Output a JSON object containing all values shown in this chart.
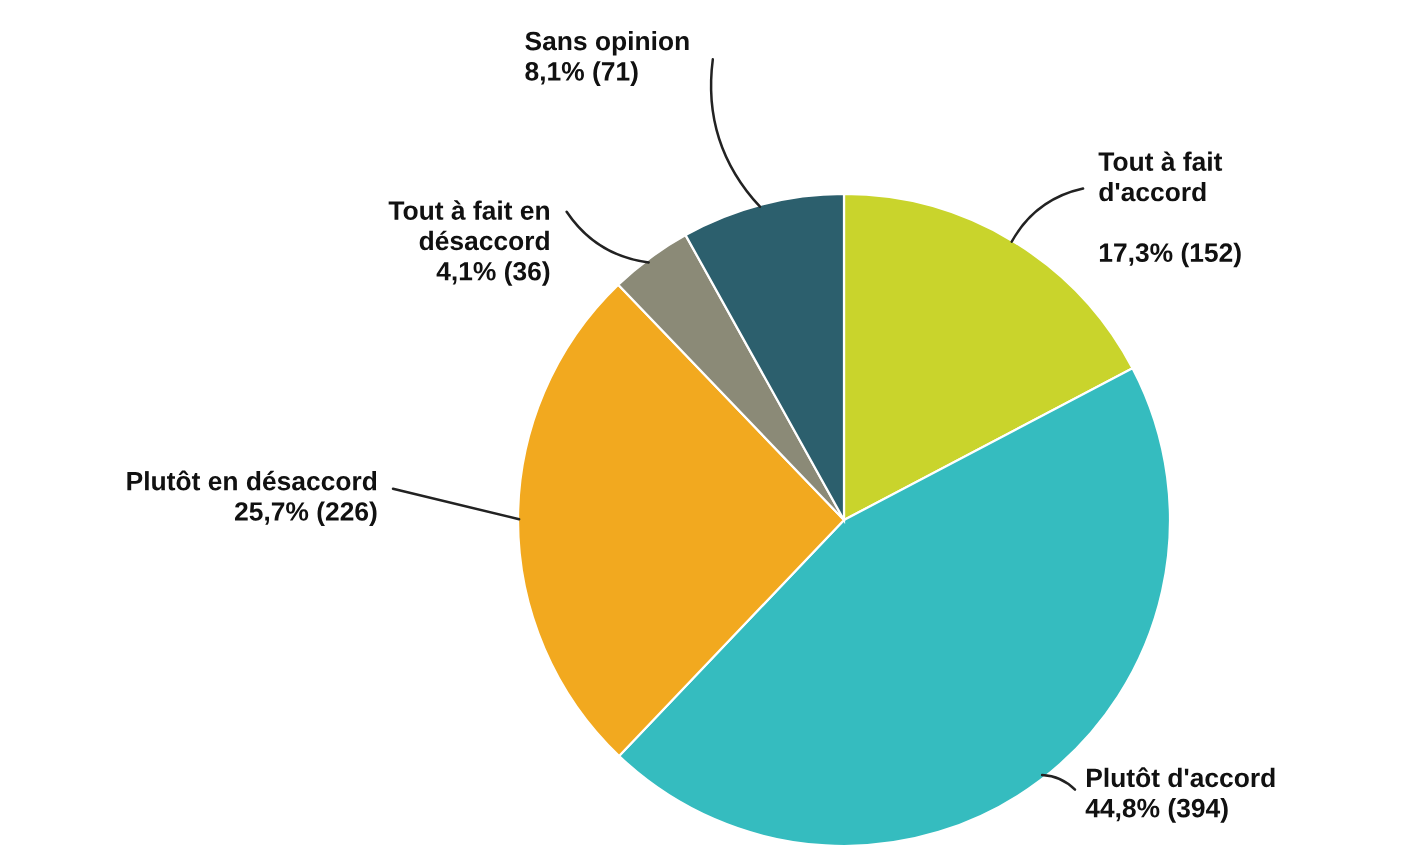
{
  "chart_data": {
    "type": "pie",
    "categories": [
      "Tout à fait\nd'accord",
      "Plutôt d'accord",
      "Plutôt en désaccord",
      "Tout à fait en\ndésaccord",
      "Sans opinion"
    ],
    "values": [
      152,
      394,
      226,
      36,
      71
    ],
    "value_labels": [
      "17,3% (152)",
      "44,8% (394)",
      "25,7% (226)",
      "4,1% (36)",
      "8,1% (71)"
    ],
    "colors": [
      "#c9d42c",
      "#35bcbf",
      "#f2a91f",
      "#8b8a77",
      "#2c5f6d"
    ]
  }
}
